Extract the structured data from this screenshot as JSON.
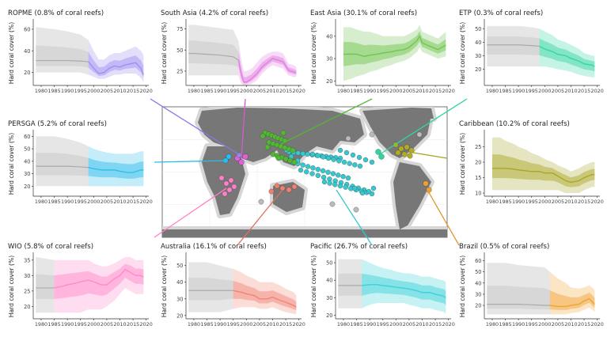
{
  "ylabel": "Hard coral cover (%)",
  "x_ticks": [
    1980,
    1985,
    1990,
    1995,
    2000,
    2005,
    2010,
    2015,
    2020
  ],
  "xlim": [
    1977,
    2021
  ],
  "chart_data": [
    {
      "type": "line",
      "title": "ROPME (0.8% of coral reefs)",
      "color": "#9b8cf0",
      "data_start": 1998,
      "ylim": [
        8,
        68
      ],
      "y_ticks": [
        20,
        40,
        60
      ],
      "x": [
        1978,
        1985,
        1990,
        1995,
        1998,
        2000,
        2002,
        2004,
        2006,
        2008,
        2010,
        2012,
        2014,
        2016,
        2018,
        2019
      ],
      "values": [
        31,
        31,
        31,
        30.5,
        30,
        24,
        19,
        20,
        24,
        26,
        25,
        27,
        28,
        29,
        24,
        18
      ],
      "band_outer": [
        20,
        20,
        20,
        20,
        18,
        16,
        14,
        14,
        16,
        18,
        18,
        19,
        19,
        19,
        15,
        11
      ],
      "band_outer_hi": [
        62,
        60,
        58,
        55,
        50,
        40,
        32,
        32,
        36,
        38,
        38,
        40,
        42,
        44,
        40,
        36
      ]
    },
    {
      "type": "line",
      "title": "South Asia (4.2% of coral reefs)",
      "color": "#e07be0",
      "data_start": 1997,
      "ylim": [
        8,
        85
      ],
      "y_ticks": [
        25,
        50,
        75
      ],
      "x": [
        1978,
        1980,
        1985,
        1990,
        1995,
        1997,
        1998,
        1999,
        2000,
        2002,
        2004,
        2006,
        2008,
        2010,
        2012,
        2014,
        2016,
        2018,
        2019
      ],
      "values": [
        46,
        46,
        45,
        44,
        42,
        38,
        22,
        12,
        12,
        16,
        22,
        30,
        35,
        40,
        38,
        36,
        26,
        24,
        23
      ],
      "band_outer": [
        20,
        20,
        20,
        20,
        20,
        20,
        10,
        8,
        8,
        10,
        14,
        22,
        28,
        32,
        30,
        28,
        20,
        18,
        18
      ],
      "band_outer_hi": [
        80,
        80,
        78,
        76,
        74,
        60,
        40,
        25,
        25,
        28,
        35,
        42,
        46,
        48,
        48,
        46,
        34,
        32,
        30
      ]
    },
    {
      "type": "line",
      "title": "East Asia (30.1% of coral reefs)",
      "color": "#6cc24a",
      "data_start": 1980,
      "ylim": [
        18,
        47
      ],
      "y_ticks": [
        20,
        30,
        40
      ],
      "x": [
        1980,
        1983,
        1985,
        1988,
        1990,
        1993,
        1995,
        1998,
        2000,
        2003,
        2005,
        2008,
        2009,
        2010,
        2012,
        2014,
        2016,
        2019
      ],
      "values": [
        32,
        32,
        32,
        31,
        31.5,
        32,
        32.5,
        33,
        33.5,
        34,
        35,
        38,
        40,
        37,
        36,
        35,
        34,
        36
      ],
      "band_outer": [
        20,
        21,
        22,
        23,
        24,
        25,
        26,
        27,
        28,
        29,
        30,
        33,
        35,
        33,
        32,
        31,
        30,
        31
      ],
      "band_outer_hi": [
        44,
        44,
        43,
        42,
        42,
        41,
        40,
        40,
        40,
        40,
        41,
        43,
        45,
        42,
        41,
        40,
        39,
        42
      ]
    },
    {
      "type": "line",
      "title": "ETP (0.3% of coral reefs)",
      "color": "#2fd4a0",
      "data_start": 1998,
      "ylim": [
        8,
        56
      ],
      "y_ticks": [
        20,
        30,
        40,
        50
      ],
      "x": [
        1978,
        1985,
        1990,
        1995,
        1998,
        2000,
        2003,
        2005,
        2008,
        2010,
        2013,
        2015,
        2018,
        2019
      ],
      "values": [
        38,
        38,
        38,
        37.5,
        37,
        35,
        33,
        31,
        30,
        28,
        26,
        24,
        23,
        22
      ],
      "band_outer": [
        22,
        22,
        22,
        22,
        22,
        22,
        21,
        20,
        19,
        18,
        16,
        15,
        14,
        14
      ],
      "band_outer_hi": [
        52,
        52,
        52,
        51,
        50,
        48,
        45,
        42,
        40,
        38,
        35,
        32,
        30,
        30
      ]
    },
    {
      "type": "line",
      "title": "PERSGA (5.2% of coral reefs)",
      "color": "#2bbcea",
      "data_start": 1998,
      "ylim": [
        12,
        64
      ],
      "y_ticks": [
        20,
        30,
        40,
        50,
        60
      ],
      "x": [
        1978,
        1985,
        1990,
        1995,
        1998,
        2000,
        2003,
        2005,
        2008,
        2010,
        2013,
        2015,
        2018,
        2019
      ],
      "values": [
        36,
        36,
        36,
        35.5,
        35,
        34,
        33,
        33,
        33,
        32,
        31,
        31,
        33,
        33
      ],
      "band_outer": [
        20,
        20,
        20,
        20,
        20,
        20,
        20,
        20,
        20,
        20,
        20,
        20,
        20,
        20
      ],
      "band_outer_hi": [
        60,
        60,
        58,
        55,
        52,
        50,
        48,
        47,
        46,
        46,
        46,
        46,
        48,
        48
      ]
    },
    {
      "type": "line",
      "title": "Caribbean (10.2% of coral reefs)",
      "color": "#a6a31f",
      "data_start": 1980,
      "ylim": [
        9,
        30
      ],
      "y_ticks": [
        10,
        15,
        20,
        25
      ],
      "x": [
        1980,
        1983,
        1985,
        1988,
        1990,
        1993,
        1995,
        1998,
        2000,
        2003,
        2005,
        2008,
        2010,
        2013,
        2015,
        2018,
        2019
      ],
      "values": [
        18,
        18,
        18,
        17.8,
        17.5,
        17.2,
        17,
        17,
        16.5,
        16.5,
        15.5,
        14,
        13.5,
        14,
        15,
        16,
        16
      ],
      "band_outer": [
        11,
        11,
        11,
        11,
        11,
        11,
        11,
        11,
        11,
        11,
        11,
        10,
        10,
        10,
        11,
        12,
        12
      ],
      "band_outer_hi": [
        28,
        28,
        27,
        26,
        25,
        24,
        23,
        22,
        21,
        20,
        19,
        18,
        17,
        18,
        19,
        20,
        20
      ]
    },
    {
      "type": "line",
      "title": "WIO (5.8% of coral reefs)",
      "color": "#ff85c8",
      "data_start": 1985,
      "ylim": [
        16,
        37
      ],
      "y_ticks": [
        20,
        25,
        30,
        35
      ],
      "x": [
        1978,
        1985,
        1988,
        1990,
        1993,
        1995,
        1998,
        2000,
        2003,
        2005,
        2008,
        2010,
        2012,
        2014,
        2016,
        2018,
        2019
      ],
      "values": [
        26,
        26,
        26.5,
        27,
        27.5,
        28,
        28.5,
        28,
        27,
        27,
        29,
        30,
        32,
        31,
        30,
        30,
        29.5
      ],
      "band_outer": [
        18,
        18,
        18,
        18,
        18,
        18,
        19,
        19,
        19,
        20,
        22,
        24,
        26,
        25,
        24,
        24,
        24
      ],
      "band_outer_hi": [
        36,
        35,
        35,
        35,
        35,
        35,
        35,
        34,
        33,
        33,
        34,
        35,
        36,
        36,
        35,
        35,
        35
      ]
    },
    {
      "type": "line",
      "title": "Australia (16.1% of coral reefs)",
      "color": "#f08070",
      "data_start": 1995,
      "ylim": [
        18,
        57
      ],
      "y_ticks": [
        20,
        30,
        40,
        50
      ],
      "x": [
        1978,
        1985,
        1990,
        1995,
        1998,
        2000,
        2003,
        2005,
        2008,
        2010,
        2013,
        2015,
        2018,
        2019
      ],
      "values": [
        35,
        35,
        35,
        35,
        34,
        33,
        32,
        30,
        30,
        31,
        29,
        28,
        26,
        25
      ],
      "band_outer": [
        22,
        22,
        22,
        24,
        25,
        25,
        25,
        24,
        24,
        25,
        23,
        22,
        21,
        21
      ],
      "band_outer_hi": [
        52,
        52,
        50,
        48,
        46,
        44,
        42,
        40,
        40,
        40,
        38,
        36,
        34,
        32
      ]
    },
    {
      "type": "line",
      "title": "Pacific (26.7% of coral reefs)",
      "color": "#35cfd6",
      "data_start": 1987,
      "ylim": [
        18,
        55
      ],
      "y_ticks": [
        20,
        30,
        40,
        50
      ],
      "x": [
        1978,
        1985,
        1987,
        1990,
        1993,
        1995,
        1998,
        2000,
        2003,
        2005,
        2008,
        2010,
        2013,
        2015,
        2018,
        2019
      ],
      "values": [
        37,
        37,
        37,
        37.5,
        37.5,
        37,
        36.5,
        36,
        35.5,
        35,
        34,
        33,
        33,
        32,
        31,
        30
      ],
      "band_outer": [
        24,
        24,
        24,
        26,
        27,
        27,
        27,
        27,
        27,
        26,
        25,
        24,
        24,
        23,
        22,
        21
      ],
      "band_outer_hi": [
        52,
        52,
        52,
        50,
        48,
        47,
        46,
        45,
        44,
        44,
        43,
        42,
        42,
        41,
        40,
        39
      ]
    },
    {
      "type": "line",
      "title": "Brazil (0.5% of coral reefs)",
      "color": "#f0a030",
      "data_start": 2002,
      "ylim": [
        8,
        66
      ],
      "y_ticks": [
        20,
        30,
        40,
        50,
        60
      ],
      "x": [
        1978,
        1985,
        1990,
        1995,
        2000,
        2002,
        2005,
        2008,
        2010,
        2013,
        2015,
        2017,
        2019
      ],
      "values": [
        21,
        21,
        21,
        20.5,
        20,
        20,
        19,
        19,
        20,
        21,
        24,
        26,
        21
      ],
      "band_outer": [
        12,
        12,
        12,
        12,
        12,
        12,
        12,
        12,
        13,
        14,
        16,
        18,
        14
      ],
      "band_outer_hi": [
        58,
        58,
        56,
        55,
        54,
        50,
        44,
        40,
        36,
        35,
        36,
        38,
        34
      ]
    }
  ],
  "map": {
    "land_color": "#777777",
    "ocean_color": "#ffffff",
    "shelf_color": "#d6d6d6"
  }
}
